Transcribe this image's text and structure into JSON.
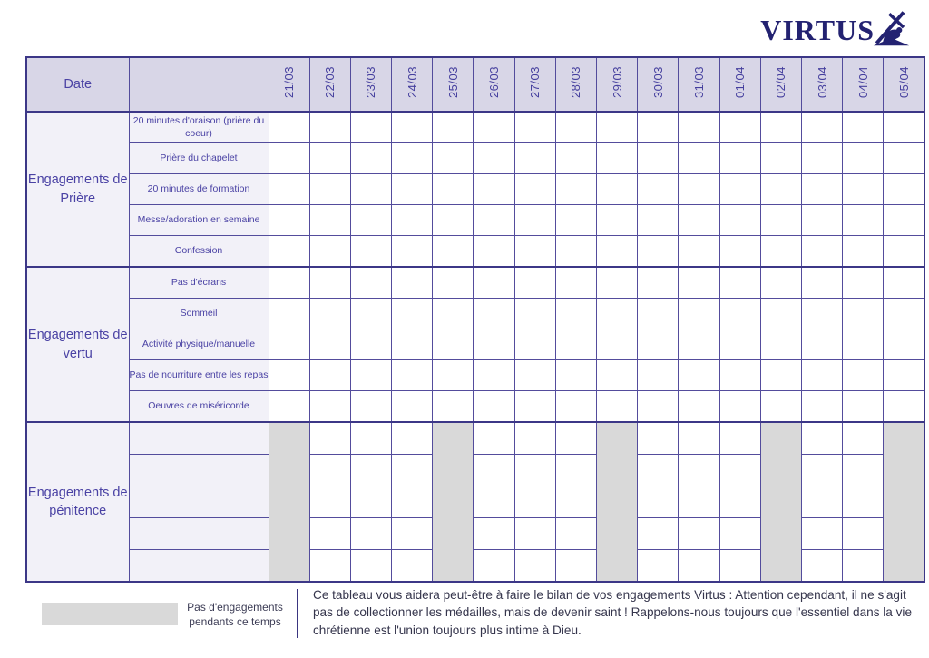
{
  "logo": {
    "text": "VIRTUS",
    "icon": "cross-bearer-icon",
    "color": "#232271"
  },
  "table": {
    "corner_label": "Date",
    "dates": [
      "21/03",
      "22/03",
      "23/03",
      "24/03",
      "25/03",
      "26/03",
      "27/03",
      "28/03",
      "29/03",
      "30/03",
      "31/03",
      "01/04",
      "02/04",
      "03/04",
      "04/04",
      "05/04"
    ],
    "sections": [
      {
        "label": "Engagements de Prière",
        "rows": [
          "20 minutes d'oraison (prière du coeur)",
          "Prière du chapelet",
          "20 minutes de formation",
          "Messe/adoration en semaine",
          "Confession"
        ],
        "gray_date_columns": []
      },
      {
        "label": "Engagements de vertu",
        "rows": [
          "Pas d'écrans",
          "Sommeil",
          "Activité physique/manuelle",
          "Pas de nourriture entre les repas",
          "Oeuvres de miséricorde"
        ],
        "gray_date_columns": []
      },
      {
        "label": "Engagements de pénitence",
        "rows": [
          "",
          "",
          "",
          "",
          ""
        ],
        "gray_date_columns": [
          0,
          4,
          8,
          12,
          15
        ]
      }
    ]
  },
  "legend": {
    "label": "Pas d'engagements\npendants ce temps",
    "swatch_color": "#d9d9d9"
  },
  "footer_note": "Ce tableau vous aidera peut-être à faire le bilan de vos engagements Virtus : Attention cependant, il ne s'agit pas de collectionner les médailles, mais de devenir saint ! Rappelons-nous toujours que l'essentiel dans la vie chrétienne est l'union toujours plus intime à Dieu.",
  "colors": {
    "border": "#534c9c",
    "border_strong": "#3c3787",
    "header_bg": "#d8d6e7",
    "label_bg": "#f2f1f8",
    "text_purple": "#4a42a4",
    "gray_cell": "#d9d9d9",
    "logo_navy": "#232271",
    "body_text": "#35354c"
  }
}
